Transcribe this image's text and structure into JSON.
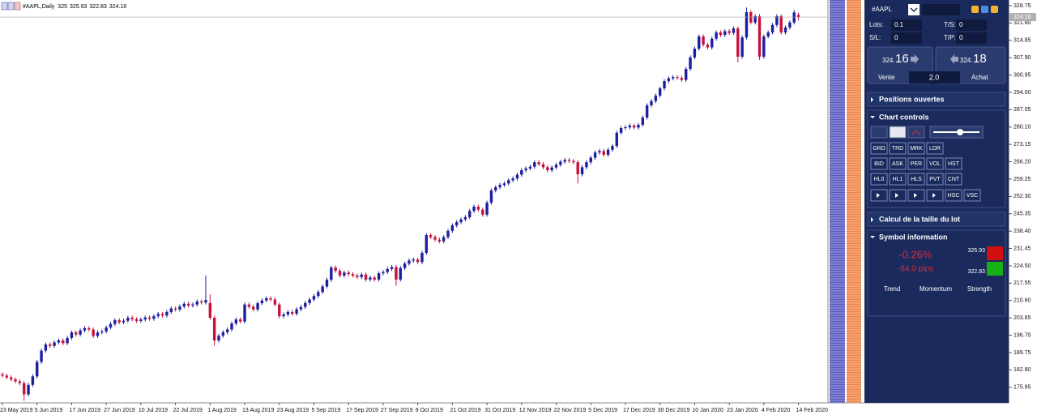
{
  "chart_data": {
    "type": "candlestick",
    "title": "#AAPL,Daily",
    "up_color": "#1e1ea0",
    "down_color": "#c8103c",
    "grid": false,
    "ylim": [
      169.6,
      331.0
    ],
    "yticks": [
      328.75,
      {
        "value": 321.8,
        "label": "321.80"
      },
      314.85,
      {
        "value": 307.9,
        "label": "307.90"
      },
      300.95,
      {
        "value": 294,
        "label": "294.00"
      },
      287.05,
      {
        "value": 280.1,
        "label": "280.10"
      },
      273.15,
      {
        "value": 266.2,
        "label": "266.20"
      },
      259.25,
      {
        "value": 252.3,
        "label": "252.30"
      },
      245.35,
      {
        "value": 238.4,
        "label": "238.40"
      },
      231.45,
      {
        "value": 224.5,
        "label": "224.50"
      },
      217.55,
      {
        "value": 210.6,
        "label": "210.60"
      },
      203.65,
      {
        "value": 196.7,
        "label": "196.70"
      },
      189.75,
      {
        "value": 182.8,
        "label": "182.80"
      },
      175.85
    ],
    "categories": [
      "23 May 2019",
      null,
      null,
      null,
      null,
      null,
      null,
      null,
      "5 Jun 2019",
      null,
      null,
      null,
      null,
      null,
      null,
      null,
      "17 Jun 2019",
      null,
      null,
      null,
      null,
      null,
      null,
      null,
      "27 Jun 2019",
      null,
      null,
      null,
      null,
      null,
      null,
      null,
      "10 Jul 2019",
      null,
      null,
      null,
      null,
      null,
      null,
      null,
      "22 Jul 2019",
      null,
      null,
      null,
      null,
      null,
      null,
      null,
      "1 Aug 2019",
      null,
      null,
      null,
      null,
      null,
      null,
      null,
      "13 Aug 2019",
      null,
      null,
      null,
      null,
      null,
      null,
      null,
      "23 Aug 2019",
      null,
      null,
      null,
      null,
      null,
      null,
      null,
      "5 Sep 2019",
      null,
      null,
      null,
      null,
      null,
      null,
      null,
      "17 Sep 2019",
      null,
      null,
      null,
      null,
      null,
      null,
      null,
      "27 Sep 2019",
      null,
      null,
      null,
      null,
      null,
      null,
      null,
      "9 Oct 2019",
      null,
      null,
      null,
      null,
      null,
      null,
      null,
      "21 Oct 2019",
      null,
      null,
      null,
      null,
      null,
      null,
      null,
      "31 Oct 2019",
      null,
      null,
      null,
      null,
      null,
      null,
      null,
      "12 Nov 2019",
      null,
      null,
      null,
      null,
      null,
      null,
      null,
      "22 Nov 2019",
      null,
      null,
      null,
      null,
      null,
      null,
      null,
      "5 Dec 2019",
      null,
      null,
      null,
      null,
      null,
      null,
      null,
      "17 Dec 2019",
      null,
      null,
      null,
      null,
      null,
      null,
      null,
      "30 Dec 2019",
      null,
      null,
      null,
      null,
      null,
      null,
      null,
      "10 Jan 2020",
      null,
      null,
      null,
      null,
      null,
      null,
      null,
      "23 Jan 2020",
      null,
      null,
      null,
      null,
      null,
      null,
      null,
      "4 Feb 2020",
      null,
      null,
      null,
      null,
      null,
      null,
      null,
      "14 Feb 2020"
    ],
    "open": [
      181.0,
      180.5,
      179.8,
      179.0,
      178.2,
      177.5,
      173.0,
      176.8,
      180.2,
      186.0,
      190.5,
      193.0,
      192.4,
      193.8,
      194.6,
      193.5,
      195.6,
      197.8,
      197.0,
      198.6,
      199.5,
      199.0,
      196.4,
      197.8,
      198.2,
      199.8,
      201.2,
      202.7,
      201.9,
      202.5,
      203.7,
      203.1,
      202.4,
      203.0,
      203.8,
      203.3,
      204.3,
      205.2,
      204.6,
      206.0,
      207.4,
      207.0,
      208.2,
      209.3,
      208.6,
      209.0,
      210.2,
      209.8,
      209.6,
      203.7,
      194.6,
      196.5,
      197.9,
      199.0,
      201.4,
      203.0,
      202.2,
      209.0,
      208.1,
      207.0,
      209.5,
      210.6,
      211.5,
      211.0,
      209.0,
      204.3,
      205.0,
      206.0,
      205.3,
      207.1,
      208.0,
      209.6,
      211.0,
      212.4,
      214.0,
      216.2,
      218.9,
      223.8,
      222.5,
      220.6,
      221.8,
      221.2,
      220.6,
      220.0,
      221.0,
      219.0,
      219.8,
      219.0,
      221.5,
      222.0,
      223.2,
      224.0,
      219.0,
      223.6,
      225.4,
      226.6,
      227.0,
      226.0,
      229.7,
      236.8,
      236.0,
      235.0,
      234.3,
      236.0,
      238.5,
      240.7,
      242.0,
      243.1,
      244.0,
      246.5,
      248.2,
      247.0,
      245.0,
      249.8,
      254.7,
      256.0,
      256.9,
      257.5,
      258.8,
      259.5,
      261.0,
      262.8,
      263.5,
      264.2,
      266.0,
      265.2,
      264.0,
      262.8,
      263.9,
      265.0,
      266.2,
      266.9,
      266.5,
      266.0,
      261.2,
      264.0,
      266.0,
      267.8,
      269.9,
      270.5,
      269.0,
      271.0,
      272.5,
      277.8,
      279.7,
      280.0,
      280.7,
      279.9,
      281.0,
      283.9,
      288.8,
      290.5,
      292.7,
      295.6,
      298.5,
      299.6,
      300.1,
      299.8,
      299.0,
      303.4,
      308.0,
      311.5,
      316.4,
      313.1,
      312.0,
      315.5,
      318.0,
      317.0,
      318.5,
      317.8,
      319.6,
      308.3,
      316.0,
      326.1,
      322.0,
      324.5,
      308.3,
      316.4,
      318.0,
      321.0,
      324.5,
      318.0,
      320.0,
      322.0,
      325.0
    ],
    "high": [
      181.8,
      181.3,
      180.6,
      179.8,
      179.0,
      178.3,
      177.6,
      181.0,
      186.8,
      191.3,
      193.8,
      193.8,
      194.6,
      195.4,
      195.4,
      196.4,
      198.6,
      198.6,
      199.4,
      200.3,
      200.3,
      199.8,
      198.6,
      199.0,
      200.6,
      202.0,
      203.5,
      203.5,
      203.3,
      204.5,
      204.5,
      203.9,
      203.8,
      204.6,
      204.6,
      205.1,
      206.0,
      206.0,
      206.8,
      208.2,
      208.2,
      209.0,
      210.1,
      210.1,
      209.8,
      211.0,
      211.0,
      220.6,
      213.0,
      204.5,
      197.3,
      198.7,
      199.8,
      202.2,
      203.8,
      203.8,
      209.8,
      209.8,
      208.9,
      210.3,
      211.4,
      212.3,
      212.3,
      211.8,
      209.8,
      205.8,
      206.8,
      206.8,
      207.9,
      208.8,
      210.4,
      211.8,
      213.2,
      214.8,
      217.0,
      219.7,
      224.6,
      224.6,
      223.3,
      222.6,
      222.6,
      222.0,
      221.4,
      221.8,
      221.8,
      220.6,
      220.6,
      222.3,
      222.8,
      224.0,
      224.8,
      224.8,
      224.4,
      226.2,
      227.4,
      227.8,
      227.8,
      230.5,
      237.6,
      237.6,
      236.8,
      235.8,
      236.8,
      239.3,
      241.5,
      242.8,
      243.9,
      244.8,
      247.3,
      249.0,
      249.0,
      247.8,
      250.6,
      255.5,
      256.8,
      257.7,
      258.3,
      259.6,
      260.3,
      261.8,
      263.6,
      264.3,
      265.0,
      266.8,
      266.8,
      266.0,
      264.8,
      264.7,
      265.8,
      267.0,
      267.7,
      267.7,
      267.3,
      266.8,
      264.8,
      266.8,
      268.6,
      270.7,
      271.3,
      271.3,
      271.8,
      273.3,
      278.6,
      280.5,
      280.8,
      281.5,
      281.5,
      281.8,
      284.7,
      289.6,
      291.3,
      293.5,
      296.4,
      299.3,
      300.4,
      300.9,
      300.9,
      300.6,
      304.2,
      308.8,
      312.3,
      317.2,
      317.2,
      313.9,
      316.3,
      318.8,
      318.8,
      319.3,
      319.3,
      320.4,
      320.4,
      316.8,
      328.0,
      326.9,
      325.3,
      325.3,
      317.2,
      318.8,
      321.8,
      325.3,
      325.3,
      320.8,
      322.8,
      327.0,
      325.93
    ],
    "low": [
      179.7,
      179.0,
      178.2,
      177.4,
      176.7,
      170.5,
      172.2,
      176.0,
      179.4,
      185.2,
      189.7,
      191.6,
      191.6,
      193.0,
      192.7,
      192.7,
      194.8,
      196.2,
      196.2,
      197.8,
      198.2,
      195.6,
      195.6,
      197.0,
      197.4,
      199.0,
      200.4,
      201.1,
      201.1,
      201.7,
      202.3,
      201.6,
      201.6,
      202.2,
      202.5,
      202.5,
      203.5,
      203.8,
      203.8,
      205.2,
      206.2,
      206.2,
      207.4,
      207.8,
      207.8,
      208.2,
      209.0,
      209.0,
      202.9,
      192.5,
      193.8,
      195.7,
      197.1,
      198.2,
      200.6,
      201.4,
      201.4,
      207.3,
      206.2,
      206.2,
      208.7,
      209.8,
      210.2,
      208.2,
      203.5,
      203.5,
      204.2,
      204.5,
      204.5,
      206.3,
      207.2,
      208.8,
      210.2,
      211.6,
      213.2,
      215.4,
      218.1,
      221.7,
      219.8,
      219.8,
      220.4,
      219.8,
      219.2,
      219.2,
      218.2,
      218.2,
      218.2,
      218.2,
      220.7,
      221.2,
      222.4,
      216.5,
      218.2,
      222.8,
      224.6,
      225.8,
      225.2,
      225.2,
      228.9,
      235.2,
      234.2,
      233.5,
      233.5,
      235.2,
      237.7,
      239.9,
      241.2,
      242.3,
      243.2,
      245.7,
      246.2,
      244.2,
      244.2,
      249.0,
      253.9,
      255.2,
      256.1,
      256.7,
      258.0,
      258.7,
      260.2,
      262.0,
      262.7,
      263.4,
      264.4,
      263.2,
      262.0,
      262.0,
      263.1,
      264.2,
      265.4,
      265.7,
      265.2,
      257.5,
      260.4,
      263.2,
      265.2,
      267.0,
      269.1,
      268.2,
      268.2,
      270.2,
      271.7,
      277.0,
      278.9,
      279.2,
      279.1,
      279.1,
      280.2,
      283.1,
      288.0,
      289.7,
      291.9,
      294.8,
      297.7,
      298.8,
      299.0,
      298.2,
      298.2,
      302.6,
      307.2,
      310.7,
      312.3,
      311.2,
      311.2,
      314.7,
      316.2,
      316.2,
      317.0,
      317.0,
      306.0,
      307.5,
      315.2,
      321.2,
      321.2,
      307.0,
      307.5,
      315.6,
      317.2,
      320.2,
      317.2,
      317.2,
      319.2,
      321.2,
      322.83
    ],
    "close": [
      180.5,
      179.8,
      179.0,
      178.2,
      177.5,
      173.0,
      176.8,
      180.2,
      186.0,
      190.5,
      193.0,
      192.4,
      193.8,
      194.6,
      193.5,
      195.6,
      197.8,
      197.0,
      198.6,
      199.5,
      199.0,
      196.4,
      197.8,
      198.2,
      199.8,
      201.2,
      202.7,
      201.9,
      202.5,
      203.7,
      203.1,
      202.4,
      203.0,
      203.8,
      203.3,
      204.3,
      205.2,
      204.6,
      206.0,
      207.4,
      207.0,
      208.2,
      209.3,
      208.6,
      209.0,
      210.2,
      209.8,
      210.8,
      203.7,
      194.6,
      196.5,
      197.9,
      199.0,
      201.4,
      203.0,
      202.2,
      209.0,
      208.1,
      207.0,
      209.5,
      210.6,
      211.5,
      211.0,
      209.0,
      204.3,
      205.0,
      206.0,
      205.3,
      207.1,
      208.0,
      209.6,
      211.0,
      212.4,
      214.0,
      216.2,
      218.9,
      223.8,
      222.5,
      220.6,
      221.8,
      221.2,
      220.6,
      220.0,
      221.0,
      219.0,
      219.8,
      219.0,
      221.5,
      222.0,
      223.2,
      224.0,
      219.0,
      223.6,
      225.4,
      226.6,
      227.0,
      226.0,
      229.7,
      236.8,
      236.0,
      235.0,
      234.3,
      236.0,
      238.5,
      240.7,
      242.0,
      243.1,
      244.0,
      246.5,
      248.2,
      247.0,
      245.0,
      249.8,
      254.7,
      256.0,
      256.9,
      257.5,
      258.8,
      259.5,
      261.0,
      262.8,
      263.5,
      264.2,
      266.0,
      265.2,
      264.0,
      262.8,
      263.9,
      265.0,
      266.2,
      266.9,
      266.5,
      266.0,
      261.2,
      264.0,
      266.0,
      267.8,
      269.9,
      270.5,
      269.0,
      271.0,
      272.5,
      277.8,
      279.7,
      280.0,
      280.7,
      279.9,
      281.0,
      283.9,
      288.8,
      290.5,
      292.7,
      295.6,
      298.5,
      299.6,
      300.1,
      299.8,
      299.0,
      303.4,
      308.0,
      311.5,
      316.4,
      313.1,
      312.0,
      315.5,
      318.0,
      317.0,
      318.5,
      317.8,
      319.6,
      308.3,
      316.0,
      326.1,
      322.0,
      324.5,
      308.3,
      316.4,
      318.0,
      321.0,
      324.5,
      318.0,
      320.0,
      322.0,
      326.0,
      324.16
    ]
  },
  "panel": {
    "symbol": "#AAPL",
    "lots_label": "Lots:",
    "lots": "0.1",
    "ts_label": "T/S:",
    "ts": "0",
    "sl_label": "S/L:",
    "sl": "0",
    "tp_label": "T/P:",
    "tp": "0",
    "sell_main": "324.",
    "sell_frac": "16",
    "buy_main": "324.",
    "buy_frac": "18",
    "sell_label": "Vente",
    "spread": "2.0",
    "buy_label": "Achat",
    "sections": [
      "Positions ouvertes",
      "Chart controls",
      "Calcul de la taille du lot",
      "Symbol information"
    ],
    "buttons": [
      [
        "GRD",
        "TRD",
        "MRK",
        "LDR"
      ],
      [
        "BID",
        "ASK",
        "PER",
        "VOL",
        "HST"
      ],
      [
        "HL0",
        "HL1",
        "HLS",
        "PVT",
        "CNT"
      ],
      [
        "HSC",
        "VSC"
      ]
    ],
    "change": "-0.26%",
    "pips": "-84.0 pips",
    "indicators": [
      "Trend",
      "Momentum",
      "Strength"
    ]
  }
}
